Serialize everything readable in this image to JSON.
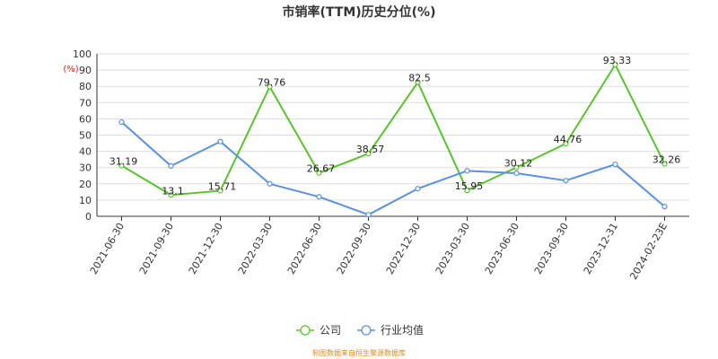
{
  "chart_data": {
    "type": "line",
    "title": "市销率(TTM)历史分位(%)",
    "yunit": "(%)",
    "ylim": [
      0,
      100
    ],
    "yticks": [
      0,
      10,
      20,
      30,
      40,
      50,
      60,
      70,
      80,
      90,
      100
    ],
    "grid": true,
    "legend_position": "bottom-center",
    "categories": [
      "2021-06-30",
      "2021-09-30",
      "2021-12-30",
      "2022-03-30",
      "2022-06-30",
      "2022-09-30",
      "2022-12-30",
      "2023-03-30",
      "2023-06-30",
      "2023-09-30",
      "2023-12-31",
      "2024-02-23E"
    ],
    "series": [
      {
        "name": "公司",
        "color": "#5cc12e",
        "values": [
          31.19,
          13.1,
          15.71,
          79.76,
          26.67,
          38.57,
          82.5,
          15.95,
          30.12,
          44.76,
          93.33,
          32.26
        ],
        "labels": [
          "31.19",
          "13.1",
          "15.71",
          "79.76",
          "26.67",
          "38.57",
          "82.5",
          "15.95",
          "30.12",
          "44.76",
          "93.33",
          "32.26"
        ]
      },
      {
        "name": "行业均值",
        "color": "#5b8fe0",
        "values": [
          58,
          31,
          46,
          20,
          12,
          1,
          17,
          28,
          26.5,
          22,
          32,
          6
        ]
      }
    ],
    "source": "制图数据来自恒生聚源数据库"
  }
}
